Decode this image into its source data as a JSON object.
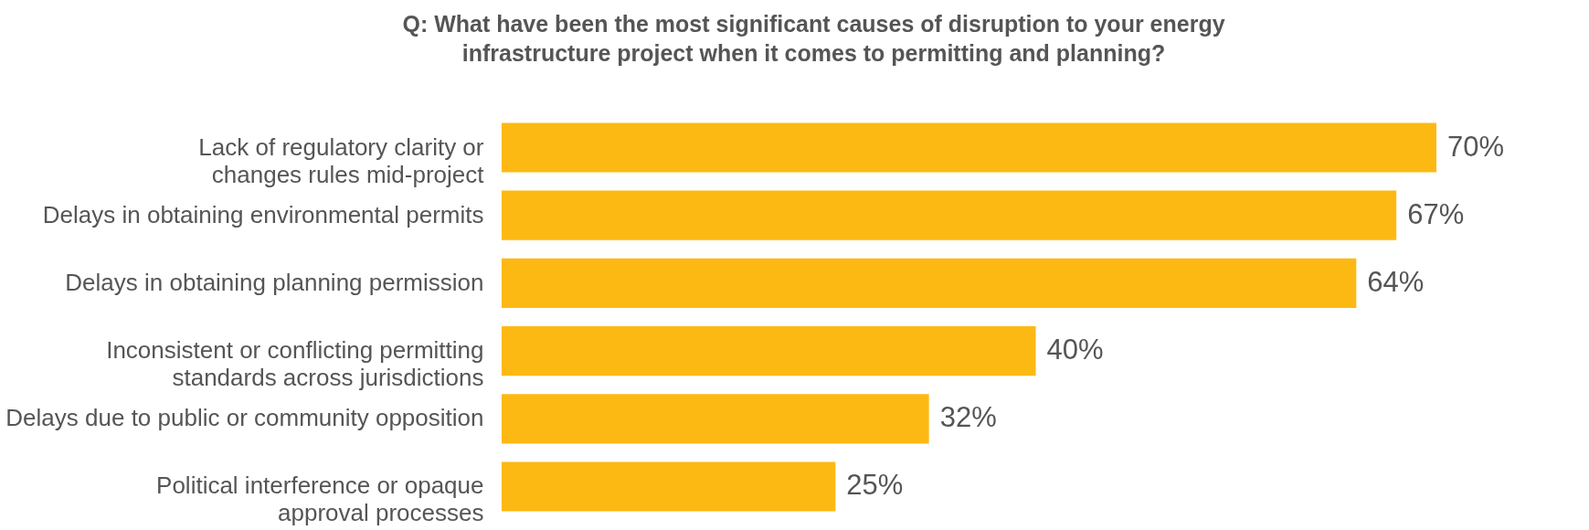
{
  "chart_data": {
    "type": "bar",
    "orientation": "horizontal",
    "title": "Q: What have been the most significant causes of disruption to your energy\n infrastructure project when it comes to permitting and planning?",
    "categories": [
      "Lack of regulatory clarity or\nchanges rules mid-project",
      "Delays in obtaining environmental permits",
      "Delays in obtaining planning permission",
      "Inconsistent or conflicting permitting\nstandards across jurisdictions",
      "Delays due to public or community opposition",
      "Political interference or opaque\napproval processes"
    ],
    "values": [
      70,
      67,
      64,
      40,
      32,
      25
    ],
    "value_labels": [
      "70%",
      "67%",
      "64%",
      "40%",
      "32%",
      "25%"
    ],
    "color": "#fdb913"
  }
}
